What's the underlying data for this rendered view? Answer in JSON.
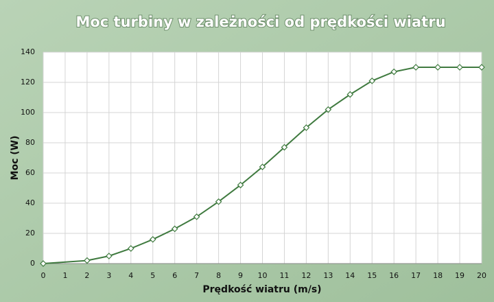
{
  "chart_data": {
    "type": "line",
    "title": "Moc turbiny w zależności od prędkości wiatru",
    "x_label": "Prędkość wiatru (m/s)",
    "y_label": "Moc (W)",
    "x": [
      0,
      2,
      3,
      4,
      5,
      6,
      7,
      8,
      9,
      10,
      11,
      12,
      13,
      14,
      15,
      16,
      17,
      18,
      19,
      20
    ],
    "series": [
      {
        "name": "Moc",
        "color": "#3f7a3f",
        "values": [
          0,
          2,
          5,
          10,
          16,
          23,
          31,
          41,
          52,
          64,
          77,
          90,
          102,
          112,
          121,
          127,
          130,
          130,
          130,
          130
        ]
      }
    ],
    "xlim": [
      0,
      20
    ],
    "xticks": [
      0,
      1,
      2,
      3,
      4,
      5,
      6,
      7,
      8,
      9,
      10,
      11,
      12,
      13,
      14,
      15,
      16,
      17,
      18,
      19,
      20
    ],
    "ylim": [
      0,
      140
    ],
    "yticks": [
      0,
      20,
      40,
      60,
      80,
      100,
      120,
      140
    ],
    "grid": true
  }
}
